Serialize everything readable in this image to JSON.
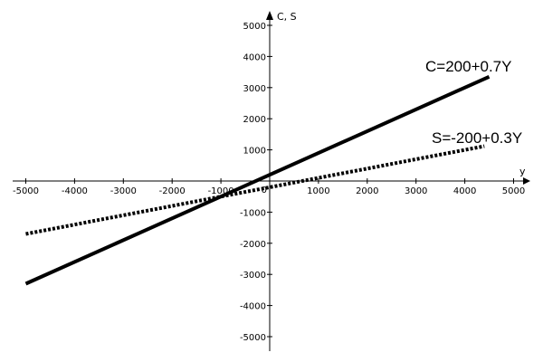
{
  "chart_data": {
    "type": "line",
    "xlabel": "y",
    "ylabel": "C, S",
    "xlim": [
      -5000,
      5000
    ],
    "ylim": [
      -5000,
      5000
    ],
    "x_ticks": [
      -5000,
      -4000,
      -3000,
      -2000,
      -1000,
      0,
      1000,
      2000,
      3000,
      4000,
      5000
    ],
    "x_tick_labels": [
      "-5000",
      "-4000",
      "-3000",
      "-2000",
      "-1000",
      "0",
      "1000",
      "2000",
      "3000",
      "4000",
      "5000"
    ],
    "y_ticks": [
      -5000,
      -4000,
      -3000,
      -2000,
      -1000,
      0,
      1000,
      2000,
      3000,
      4000,
      5000
    ],
    "y_tick_labels": [
      "-5000",
      "-4000",
      "-3000",
      "-2000",
      "-1000",
      "0",
      "1000",
      "2000",
      "3000",
      "4000",
      "5000"
    ],
    "grid": false,
    "series": [
      {
        "name": "C=200+0.7Y",
        "style": "solid",
        "color": "#000000",
        "x": [
          -5000,
          4500
        ],
        "y": [
          -3300,
          3350
        ]
      },
      {
        "name": "S=-200+0.3Y",
        "style": "dotted",
        "color": "#000000",
        "x": [
          -5000,
          4400
        ],
        "y": [
          -1700,
          1120
        ]
      }
    ]
  }
}
